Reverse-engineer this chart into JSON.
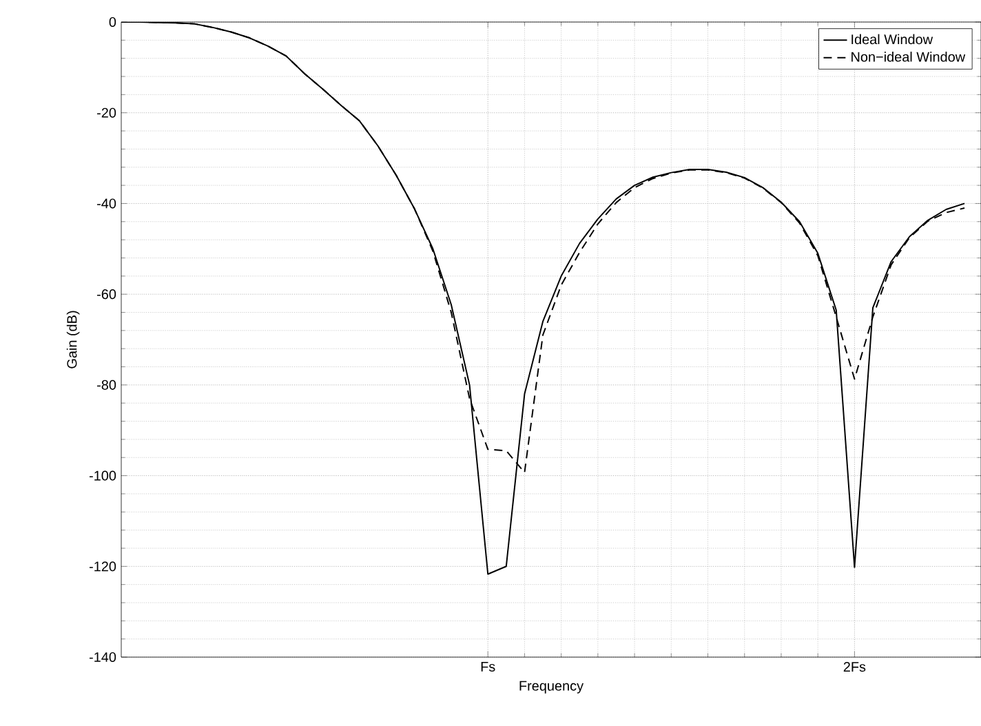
{
  "chart_data": {
    "type": "line",
    "xlabel": "Frequency",
    "ylabel": "Gain (dB)",
    "categories": [
      null,
      null,
      null,
      null,
      null,
      null,
      null,
      null,
      null,
      null,
      null,
      null,
      null,
      null,
      null,
      null,
      null,
      null,
      null,
      null,
      "Fs",
      null,
      null,
      null,
      null,
      null,
      null,
      null,
      null,
      null,
      null,
      null,
      null,
      null,
      null,
      null,
      null,
      null,
      null,
      null,
      "2Fs",
      null,
      null,
      null,
      null,
      null,
      null
    ],
    "ylim": [
      -140,
      0
    ],
    "yticks": [
      -140,
      -120,
      -100,
      -80,
      -60,
      -40,
      -20,
      0
    ],
    "grid": true,
    "legend": "top right",
    "series": [
      {
        "name": "Ideal Window",
        "color": "#000000",
        "line_style": "solid",
        "values": [
          0,
          0,
          -0.1,
          -0.2,
          -0.4,
          -1.2,
          -2.2,
          -3.5,
          -5.3,
          -7.5,
          -11.4,
          -14.8,
          -18.4,
          -21.8,
          -27.3,
          -33.8,
          -41.2,
          -50,
          -62.3,
          -80,
          -121.7,
          -120,
          -82,
          -66,
          -56,
          -48.8,
          -43.4,
          -39,
          -36,
          -34.2,
          -33.2,
          -32.5,
          -32.5,
          -33.1,
          -34.3,
          -36.5,
          -39.7,
          -44,
          -51,
          -63.5,
          -120.2,
          -63,
          -52.8,
          -47.3,
          -43.7,
          -41.3,
          -40
        ]
      },
      {
        "name": "Non−ideal Window",
        "color": "#000000",
        "line_style": "dashed",
        "values": [
          0,
          0,
          -0.1,
          -0.2,
          -0.4,
          -1.2,
          -2.2,
          -3.5,
          -5.3,
          -7.5,
          -11.4,
          -14.8,
          -18.4,
          -21.8,
          -27.3,
          -33.8,
          -41.2,
          -50.5,
          -64,
          -83,
          -94.2,
          -94.5,
          -99.3,
          -69,
          -58,
          -50.8,
          -44.5,
          -39.8,
          -36.5,
          -34.5,
          -33.3,
          -32.6,
          -32.6,
          -33.2,
          -34.4,
          -36.6,
          -39.8,
          -44.3,
          -51.5,
          -65,
          -78.7,
          -65,
          -53.5,
          -47.5,
          -43.9,
          -42,
          -41
        ]
      }
    ]
  }
}
